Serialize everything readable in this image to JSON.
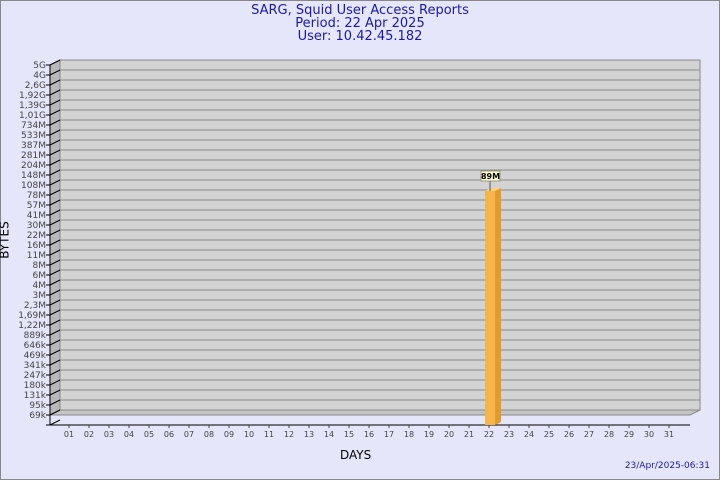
{
  "chart_data": {
    "type": "bar",
    "title": "SARG, Squid User Access Reports",
    "subtitle_period": "Period: 22 Apr 2025",
    "subtitle_user": "User: 10.42.45.182",
    "xlabel": "DAYS",
    "ylabel": "BYTES",
    "y_scale": "log",
    "y_ticks": [
      "5G",
      "4G",
      "2,6G",
      "1,92G",
      "1,39G",
      "1,01G",
      "734M",
      "533M",
      "387M",
      "281M",
      "204M",
      "148M",
      "108M",
      "78M",
      "57M",
      "41M",
      "30M",
      "22M",
      "16M",
      "11M",
      "8M",
      "6M",
      "4M",
      "3M",
      "2,3M",
      "1,69M",
      "1,22M",
      "889k",
      "646k",
      "469k",
      "341k",
      "247k",
      "180k",
      "131k",
      "95k",
      "69k"
    ],
    "categories": [
      "01",
      "02",
      "03",
      "04",
      "05",
      "06",
      "07",
      "08",
      "09",
      "10",
      "11",
      "12",
      "13",
      "14",
      "15",
      "16",
      "17",
      "18",
      "19",
      "20",
      "21",
      "22",
      "23",
      "24",
      "25",
      "26",
      "27",
      "28",
      "29",
      "30",
      "31"
    ],
    "bars": [
      {
        "day": "22",
        "value": 89000000,
        "label": "89M"
      }
    ],
    "grid": true,
    "bar_color": "#f5b54a",
    "plot_background": "#d3d3d3"
  },
  "footer": {
    "timestamp": "23/Apr/2025-06:31"
  }
}
